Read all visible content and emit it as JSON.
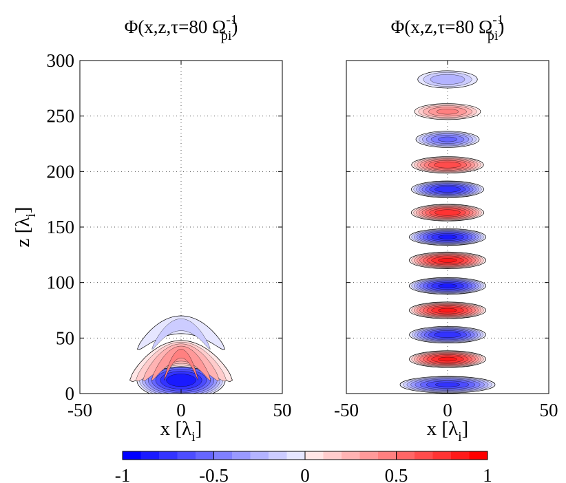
{
  "chart_data": [
    {
      "type": "contour",
      "title": "Φ(x,z,τ=80 Ω",
      "title_sup": "-1",
      "title_sub": "pi",
      "title_close": ")",
      "xlabel": "x [λ",
      "xlabel_sub": "i",
      "xlabel_close": "]",
      "ylabel": "z [λ",
      "ylabel_sub": "i",
      "ylabel_close": "]",
      "xlim": [
        -50,
        50
      ],
      "ylim": [
        0,
        300
      ],
      "xticks": [
        -50,
        0,
        50
      ],
      "xtick_labels": [
        "-50",
        "0",
        "50"
      ],
      "yticks": [
        0,
        50,
        100,
        150,
        200,
        250,
        300
      ],
      "ytick_labels": [
        "0",
        "50",
        "100",
        "150",
        "200",
        "250",
        "300"
      ],
      "grid": "dotted",
      "lobes": [
        {
          "z": 12,
          "half_width": 23,
          "thickness": 18,
          "bend": 0,
          "amplitude": -1.0
        },
        {
          "z": 36,
          "half_width": 28,
          "thickness": 13,
          "bend": 24,
          "amplitude": 0.55
        },
        {
          "z": 62,
          "half_width": 27,
          "thickness": 10,
          "bend": 22,
          "amplitude": -0.28
        }
      ]
    },
    {
      "type": "contour",
      "title": "Φ(x,z,τ=80 Ω",
      "title_sup": "-1",
      "title_sub": "pi",
      "title_close": ")",
      "xlabel": "x [λ",
      "xlabel_sub": "i",
      "xlabel_close": "]",
      "xlim": [
        -50,
        50
      ],
      "ylim": [
        0,
        300
      ],
      "xticks": [
        -50,
        0,
        50
      ],
      "xtick_labels": [
        "-50",
        "0",
        "50"
      ],
      "yticks": [
        0,
        50,
        100,
        150,
        200,
        250,
        300
      ],
      "grid": "dotted",
      "lobes": [
        {
          "z": 8,
          "half_width": 25,
          "thickness": 8,
          "amplitude": -0.85
        },
        {
          "z": 31,
          "half_width": 20,
          "thickness": 8,
          "amplitude": 0.95
        },
        {
          "z": 53,
          "half_width": 20,
          "thickness": 8,
          "amplitude": -0.9
        },
        {
          "z": 75,
          "half_width": 20,
          "thickness": 8,
          "amplitude": 0.95
        },
        {
          "z": 97,
          "half_width": 20,
          "thickness": 8,
          "amplitude": -0.95
        },
        {
          "z": 120,
          "half_width": 20,
          "thickness": 8,
          "amplitude": 0.95
        },
        {
          "z": 141,
          "half_width": 20,
          "thickness": 8,
          "amplitude": -0.95
        },
        {
          "z": 163,
          "half_width": 19,
          "thickness": 8,
          "amplitude": 0.9
        },
        {
          "z": 184,
          "half_width": 19,
          "thickness": 8,
          "amplitude": -0.9
        },
        {
          "z": 206,
          "half_width": 19,
          "thickness": 8,
          "amplitude": 0.8
        },
        {
          "z": 229,
          "half_width": 17,
          "thickness": 8,
          "amplitude": -0.65
        },
        {
          "z": 254,
          "half_width": 18,
          "thickness": 8,
          "amplitude": 0.55
        },
        {
          "z": 283,
          "half_width": 17,
          "thickness": 9,
          "amplitude": -0.4
        }
      ]
    }
  ],
  "colorbar": {
    "min": -1,
    "max": 1,
    "levels": 20,
    "ticks": [
      -1,
      -0.5,
      0,
      0.5,
      1
    ],
    "tick_labels": [
      "-1",
      "-0.5",
      "0",
      "0.5",
      "1"
    ],
    "colormap": [
      "#0000ff",
      "#ffffff",
      "#ff0000"
    ]
  }
}
